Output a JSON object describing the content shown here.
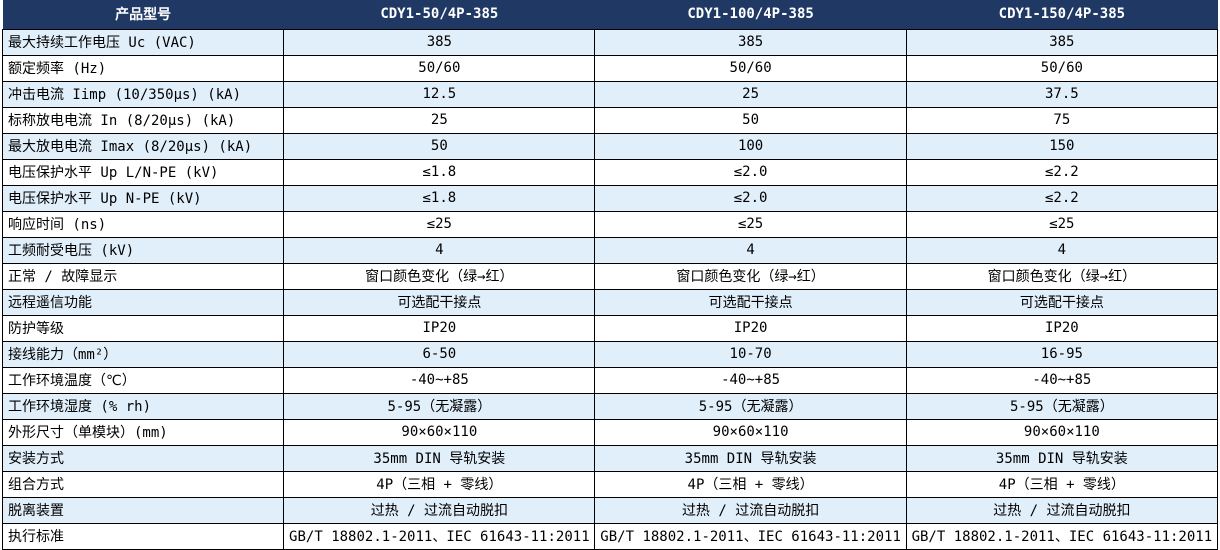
{
  "table": {
    "header": {
      "label_col": "产品型号",
      "models": [
        "CDY1-50/4P-385",
        "CDY1-100/4P-385",
        "CDY1-150/4P-385"
      ]
    },
    "rows": [
      {
        "label": "最大持续工作电压 Uc (VAC)",
        "values": [
          "385",
          "385",
          "385"
        ]
      },
      {
        "label": "额定频率 (Hz)",
        "values": [
          "50/60",
          "50/60",
          "50/60"
        ]
      },
      {
        "label": "冲击电流 Iimp (10/350μs) (kA)",
        "values": [
          "12.5",
          "25",
          "37.5"
        ]
      },
      {
        "label": "标称放电电流 In (8/20μs) (kA)",
        "values": [
          "25",
          "50",
          "75"
        ]
      },
      {
        "label": "最大放电电流 Imax (8/20μs) (kA)",
        "values": [
          "50",
          "100",
          "150"
        ]
      },
      {
        "label": "电压保护水平 Up L/N-PE (kV)",
        "values": [
          "≤1.8",
          "≤2.0",
          "≤2.2"
        ]
      },
      {
        "label": "电压保护水平 Up N-PE (kV)",
        "values": [
          "≤1.8",
          "≤2.0",
          "≤2.2"
        ]
      },
      {
        "label": "响应时间 (ns)",
        "values": [
          "≤25",
          "≤25",
          "≤25"
        ]
      },
      {
        "label": "工频耐受电压 (kV)",
        "values": [
          "4",
          "4",
          "4"
        ]
      },
      {
        "label": "正常 / 故障显示",
        "values": [
          "窗口颜色变化（绿→红）",
          "窗口颜色变化（绿→红）",
          "窗口颜色变化（绿→红）"
        ]
      },
      {
        "label": "远程遥信功能",
        "values": [
          "可选配干接点",
          "可选配干接点",
          "可选配干接点"
        ]
      },
      {
        "label": "防护等级",
        "values": [
          "IP20",
          "IP20",
          "IP20"
        ]
      },
      {
        "label": "接线能力（mm²）",
        "values": [
          "6-50",
          "10-70",
          "16-95"
        ]
      },
      {
        "label": "工作环境温度（℃）",
        "values": [
          "-40~+85",
          "-40~+85",
          "-40~+85"
        ]
      },
      {
        "label": "工作环境湿度 (% rh)",
        "values": [
          "5-95（无凝露）",
          "5-95（无凝露）",
          "5-95（无凝露）"
        ]
      },
      {
        "label": "外形尺寸（单模块）(mm)",
        "values": [
          "90×60×110",
          "90×60×110",
          "90×60×110"
        ]
      },
      {
        "label": "安装方式",
        "values": [
          "35mm DIN 导轨安装",
          "35mm DIN 导轨安装",
          "35mm DIN 导轨安装"
        ]
      },
      {
        "label": "组合方式",
        "values": [
          "4P（三相 + 零线）",
          "4P（三相 + 零线）",
          "4P（三相 + 零线）"
        ]
      },
      {
        "label": "脱离装置",
        "values": [
          "过热 / 过流自动脱扣",
          "过热 / 过流自动脱扣",
          "过热 / 过流自动脱扣"
        ]
      },
      {
        "label": "执行标准",
        "values": [
          "GB/T 18802.1-2011、IEC 61643-11:2011",
          "GB/T 18802.1-2011、IEC 61643-11:2011",
          "GB/T 18802.1-2011、IEC 61643-11:2011"
        ]
      }
    ],
    "colors": {
      "header_bg": "#1F3864",
      "header_text": "#FFFFFF",
      "row_bg": "#FFFFFF",
      "row_alt_bg": "#E1EFFB",
      "border": "#000000"
    }
  }
}
